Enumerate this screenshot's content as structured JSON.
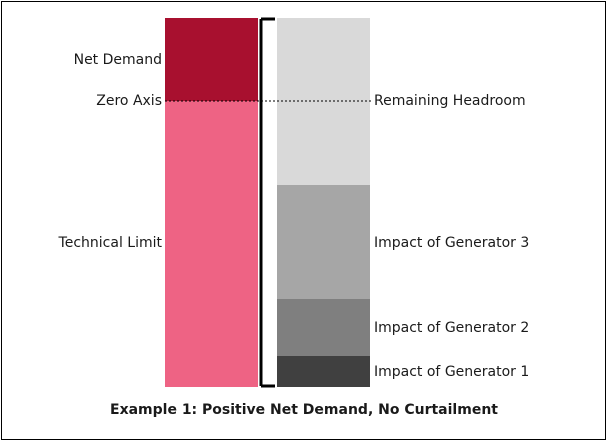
{
  "left_labels": [
    "Net Demand",
    "Zero Axis",
    "Technical Limit"
  ],
  "right_labels": [
    "Remaining Headroom",
    "Impact of Generator 3",
    "Impact of Generator 2",
    "Impact of Generator 1"
  ],
  "caption": "Example 1: Positive Net Demand, No Curtailment"
}
